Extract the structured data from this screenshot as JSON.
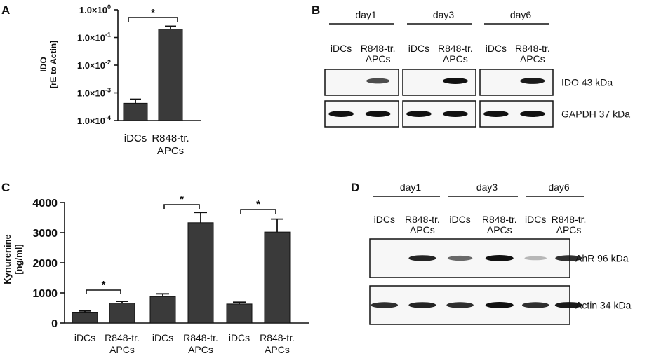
{
  "panels": {
    "A": {
      "label": "A"
    },
    "B": {
      "label": "B"
    },
    "C": {
      "label": "C"
    },
    "D": {
      "label": "D"
    }
  },
  "chart_data": [
    {
      "panel": "A",
      "type": "bar",
      "yscale": "log",
      "categories": [
        "iDCs",
        "R848-tr.\nAPCs"
      ],
      "values": [
        0.00042,
        0.2
      ],
      "errors": [
        0.00017,
        0.055
      ],
      "ylabel": "IDO\n[rE to Actin]",
      "yticks": [
        {
          "value": 0.0001,
          "label": "1.0×10",
          "exp": "-4"
        },
        {
          "value": 0.001,
          "label": "1.0×10",
          "exp": "-3"
        },
        {
          "value": 0.01,
          "label": "1.0×10",
          "exp": "-2"
        },
        {
          "value": 0.1,
          "label": "1.0×10",
          "exp": "-1"
        },
        {
          "value": 1,
          "label": "1.0×10",
          "exp": "0"
        }
      ],
      "ylim": [
        0.0001,
        1
      ],
      "annotations": [
        {
          "text": "*",
          "from": 0,
          "to": 1
        }
      ]
    },
    {
      "panel": "C",
      "type": "bar",
      "categories": [
        "iDCs",
        "R848-tr.\nAPCs",
        "iDCs",
        "R848-tr.\nAPCs",
        "iDCs",
        "R848-tr.\nAPCs"
      ],
      "values": [
        360,
        660,
        880,
        3330,
        630,
        3020
      ],
      "errors": [
        40,
        60,
        90,
        340,
        60,
        430
      ],
      "ylabel": "Kynurenine\n[ng/ml]",
      "ylim": [
        0,
        4000
      ],
      "yticks": [
        0,
        1000,
        2000,
        3000,
        4000
      ],
      "annotations": [
        {
          "text": "*",
          "from": 0,
          "to": 1
        },
        {
          "text": "*",
          "from": 2,
          "to": 3
        },
        {
          "text": "*",
          "from": 4,
          "to": 5
        }
      ]
    }
  ],
  "blotB": {
    "groups": [
      {
        "day": "day1",
        "lanes": [
          "iDCs",
          "R848-tr.\nAPCs"
        ]
      },
      {
        "day": "day3",
        "lanes": [
          "iDCs",
          "R848-tr.\nAPCs"
        ]
      },
      {
        "day": "day6",
        "lanes": [
          "iDCs",
          "R848-tr.\nAPCs"
        ]
      }
    ],
    "rows": [
      {
        "label": "IDO 43 kDa",
        "intensity": [
          [
            0,
            0.7
          ],
          [
            0,
            1.0
          ],
          [
            0,
            0.95
          ]
        ]
      },
      {
        "label": "GAPDH 37 kDa",
        "intensity": [
          [
            1,
            1
          ],
          [
            1,
            1
          ],
          [
            1,
            1
          ]
        ]
      }
    ]
  },
  "blotD": {
    "groups": [
      {
        "day": "day1",
        "lanes": [
          "iDCs",
          "R848-tr.\nAPCs"
        ]
      },
      {
        "day": "day3",
        "lanes": [
          "iDCs",
          "R848-tr.\nAPCs"
        ]
      },
      {
        "day": "day6",
        "lanes": [
          "iDCs",
          "R848-tr.\nAPCs"
        ]
      }
    ],
    "rows": [
      {
        "label": "AhR 96 kDa",
        "intensity": [
          [
            0,
            0.9
          ],
          [
            0.55,
            1.0
          ],
          [
            0.15,
            0.85
          ]
        ]
      },
      {
        "label": "Actin 34 kDa",
        "intensity": [
          [
            0.85,
            0.9
          ],
          [
            0.85,
            1.0
          ],
          [
            0.85,
            0.95
          ]
        ]
      }
    ]
  },
  "colors": {
    "bar": "#3a3a3a",
    "band": "#1a1a1a",
    "axis": "#111111"
  }
}
